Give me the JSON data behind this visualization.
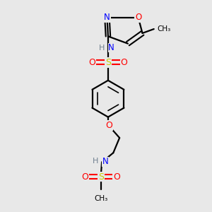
{
  "background_color": "#e8e8e8",
  "colors": {
    "C": "#000000",
    "H": "#708090",
    "N": "#0000ff",
    "O": "#ff0000",
    "S": "#cccc00"
  }
}
